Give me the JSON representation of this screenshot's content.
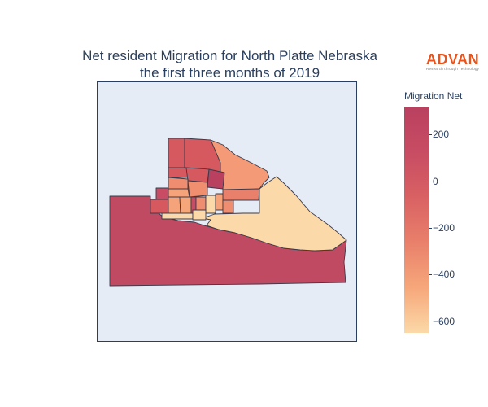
{
  "title_line1": "Net resident Migration for North Platte Nebraska",
  "title_line2": "the first three months of 2019",
  "logo": {
    "name": "ADVAN",
    "tagline": "Research through Technology"
  },
  "colorbar": {
    "title": "Migration Net",
    "range": [
      -650,
      320
    ],
    "ticks": [
      {
        "value": 200,
        "label": "200"
      },
      {
        "value": 0,
        "label": "0"
      },
      {
        "value": -200,
        "label": "−200"
      },
      {
        "value": -400,
        "label": "−400"
      },
      {
        "value": -600,
        "label": "−600"
      }
    ],
    "colors": [
      "#fcd9a8",
      "#f6a77a",
      "#e9806b",
      "#d96163",
      "#c84c63",
      "#b9405f"
    ]
  },
  "map_background": "#e5ecf6",
  "map_border_color": "#2a3f5f",
  "region_border_color": "#3a3a4a"
}
